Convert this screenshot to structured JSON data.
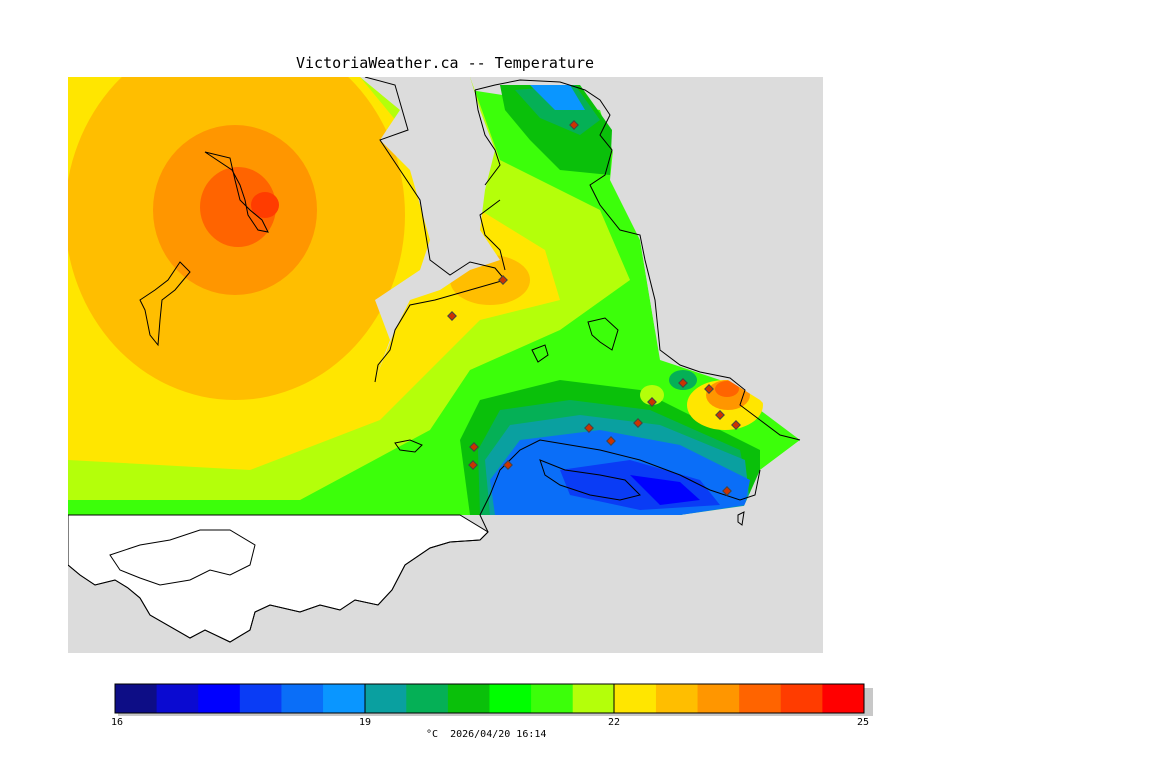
{
  "title": "VictoriaWeather.ca -- Temperature",
  "colorbar": {
    "min": 16,
    "max": 25,
    "tick_labels": [
      "16",
      "19",
      "22",
      "25"
    ],
    "colors": [
      "#0d0d86",
      "#0a0ad1",
      "#0000ff",
      "#0a3cf5",
      "#0a6ef8",
      "#0a96ff",
      "#0aa0a0",
      "#05b056",
      "#0ac00a",
      "#00ff00",
      "#3cff0a",
      "#b4ff0a",
      "#ffe600",
      "#ffbe00",
      "#ff9600",
      "#ff6400",
      "#ff3c00",
      "#ff0000"
    ],
    "caption": "°C  2026/04/20 16:14"
  },
  "map": {
    "land_color": "#dcdcdc",
    "water_color": "#ffffff",
    "station_marker_color": "#cc3300"
  }
}
